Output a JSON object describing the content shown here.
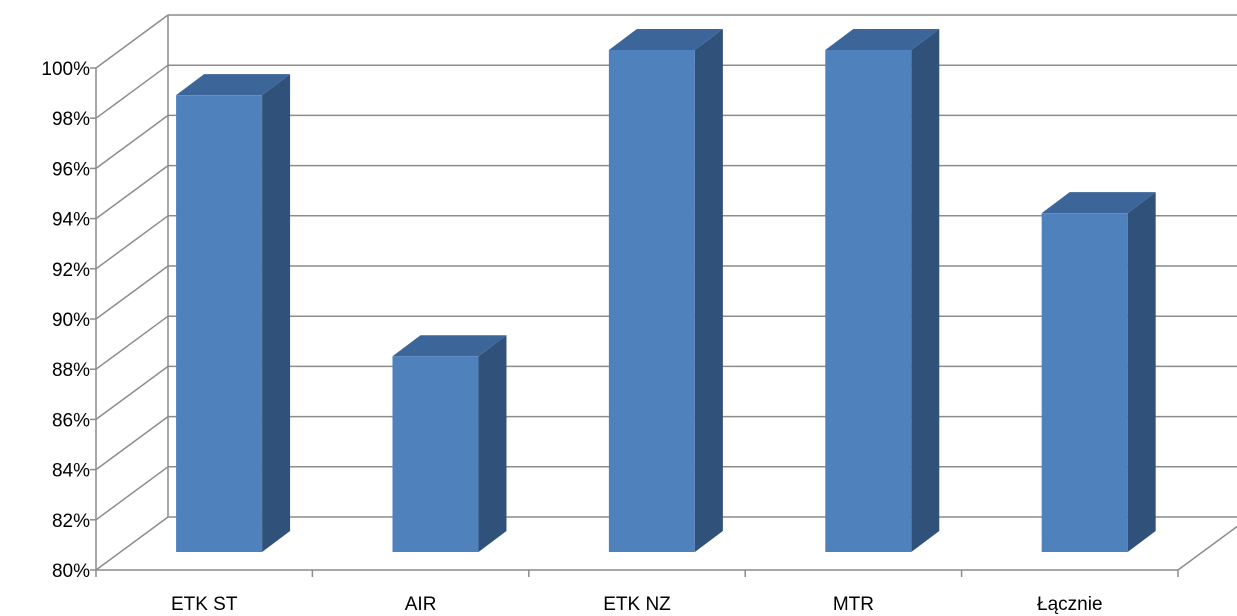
{
  "chart_data": {
    "type": "bar",
    "style": "3d-column",
    "categories": [
      "ETK ST",
      "AIR",
      "ETK NZ",
      "MTR",
      "Łącznie"
    ],
    "values": [
      98.2,
      87.8,
      100,
      100,
      93.5
    ],
    "ylim": [
      80,
      100
    ],
    "ytick_step": 2,
    "y_ticks": [
      "80%",
      "82%",
      "84%",
      "86%",
      "88%",
      "90%",
      "92%",
      "94%",
      "96%",
      "98%",
      "100%"
    ],
    "grid": true,
    "legend": "none",
    "colors": {
      "bar_front": "#4F81BD",
      "bar_side": "#30527A",
      "bar_top": "#3C659A",
      "grid": "#8C8C8C"
    }
  }
}
